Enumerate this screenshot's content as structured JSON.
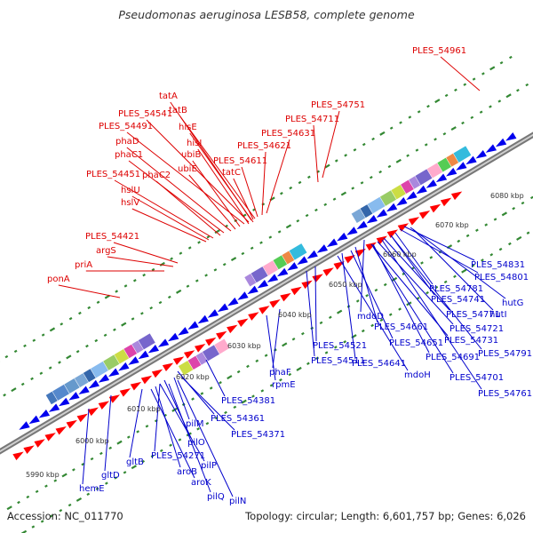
{
  "title": "Pseudomonas aeruginosa LESB58, complete genome",
  "footer": {
    "accession": "Accession: NC_011770",
    "summary": "Topology: circular; Length: 6,601,757 bp; Genes: 6,026"
  },
  "colors": {
    "forward_label": "#dd0000",
    "reverse_label": "#0000cc",
    "forward_arrow": "#ff0000",
    "reverse_arrow": "#0000ee",
    "backbone": "#999999",
    "tick_dots": "#338833"
  },
  "scale_labels": [
    "5990 kbp",
    "6000 kbp",
    "6010 kbp",
    "6020 kbp",
    "6030 kbp",
    "6040 kbp",
    "6050 kbp",
    "6060 kbp",
    "6070 kbp",
    "6080 kbp"
  ],
  "forward_genes": [
    "PLES_54961",
    "tatA",
    "tatB",
    "PLES_54541",
    "PLES_54491",
    "hisE",
    "PLES_54751",
    "PLES_54711",
    "hisI",
    "phaD",
    "ubiB",
    "PLES_54631",
    "phaC1",
    "ubiE",
    "PLES_54621",
    "PLES_54611",
    "tatC",
    "PLES_54451",
    "phaC2",
    "hslU",
    "hslV",
    "PLES_54421",
    "argS",
    "priA",
    "ponA"
  ],
  "reverse_genes": [
    "PLES_54831",
    "PLES_54801",
    "PLES_54781",
    "hutG",
    "PLES_54741",
    "hutI",
    "PLES_54771",
    "mdoD",
    "PLES_54721",
    "PLES_54661",
    "PLES_54731",
    "PLES_54651",
    "PLES_54791",
    "PLES_54521",
    "PLES_54691",
    "PLES_54511",
    "PLES_54641",
    "mdoH",
    "PLES_54701",
    "PLES_54761",
    "phaF",
    "rpmE",
    "PLES_54381",
    "PLES_54361",
    "pilM",
    "PLES_54371",
    "pilO",
    "PLES_54271",
    "gltB",
    "pilP",
    "aroB",
    "gltD",
    "aroK",
    "pilQ",
    "hemE",
    "pilN"
  ]
}
